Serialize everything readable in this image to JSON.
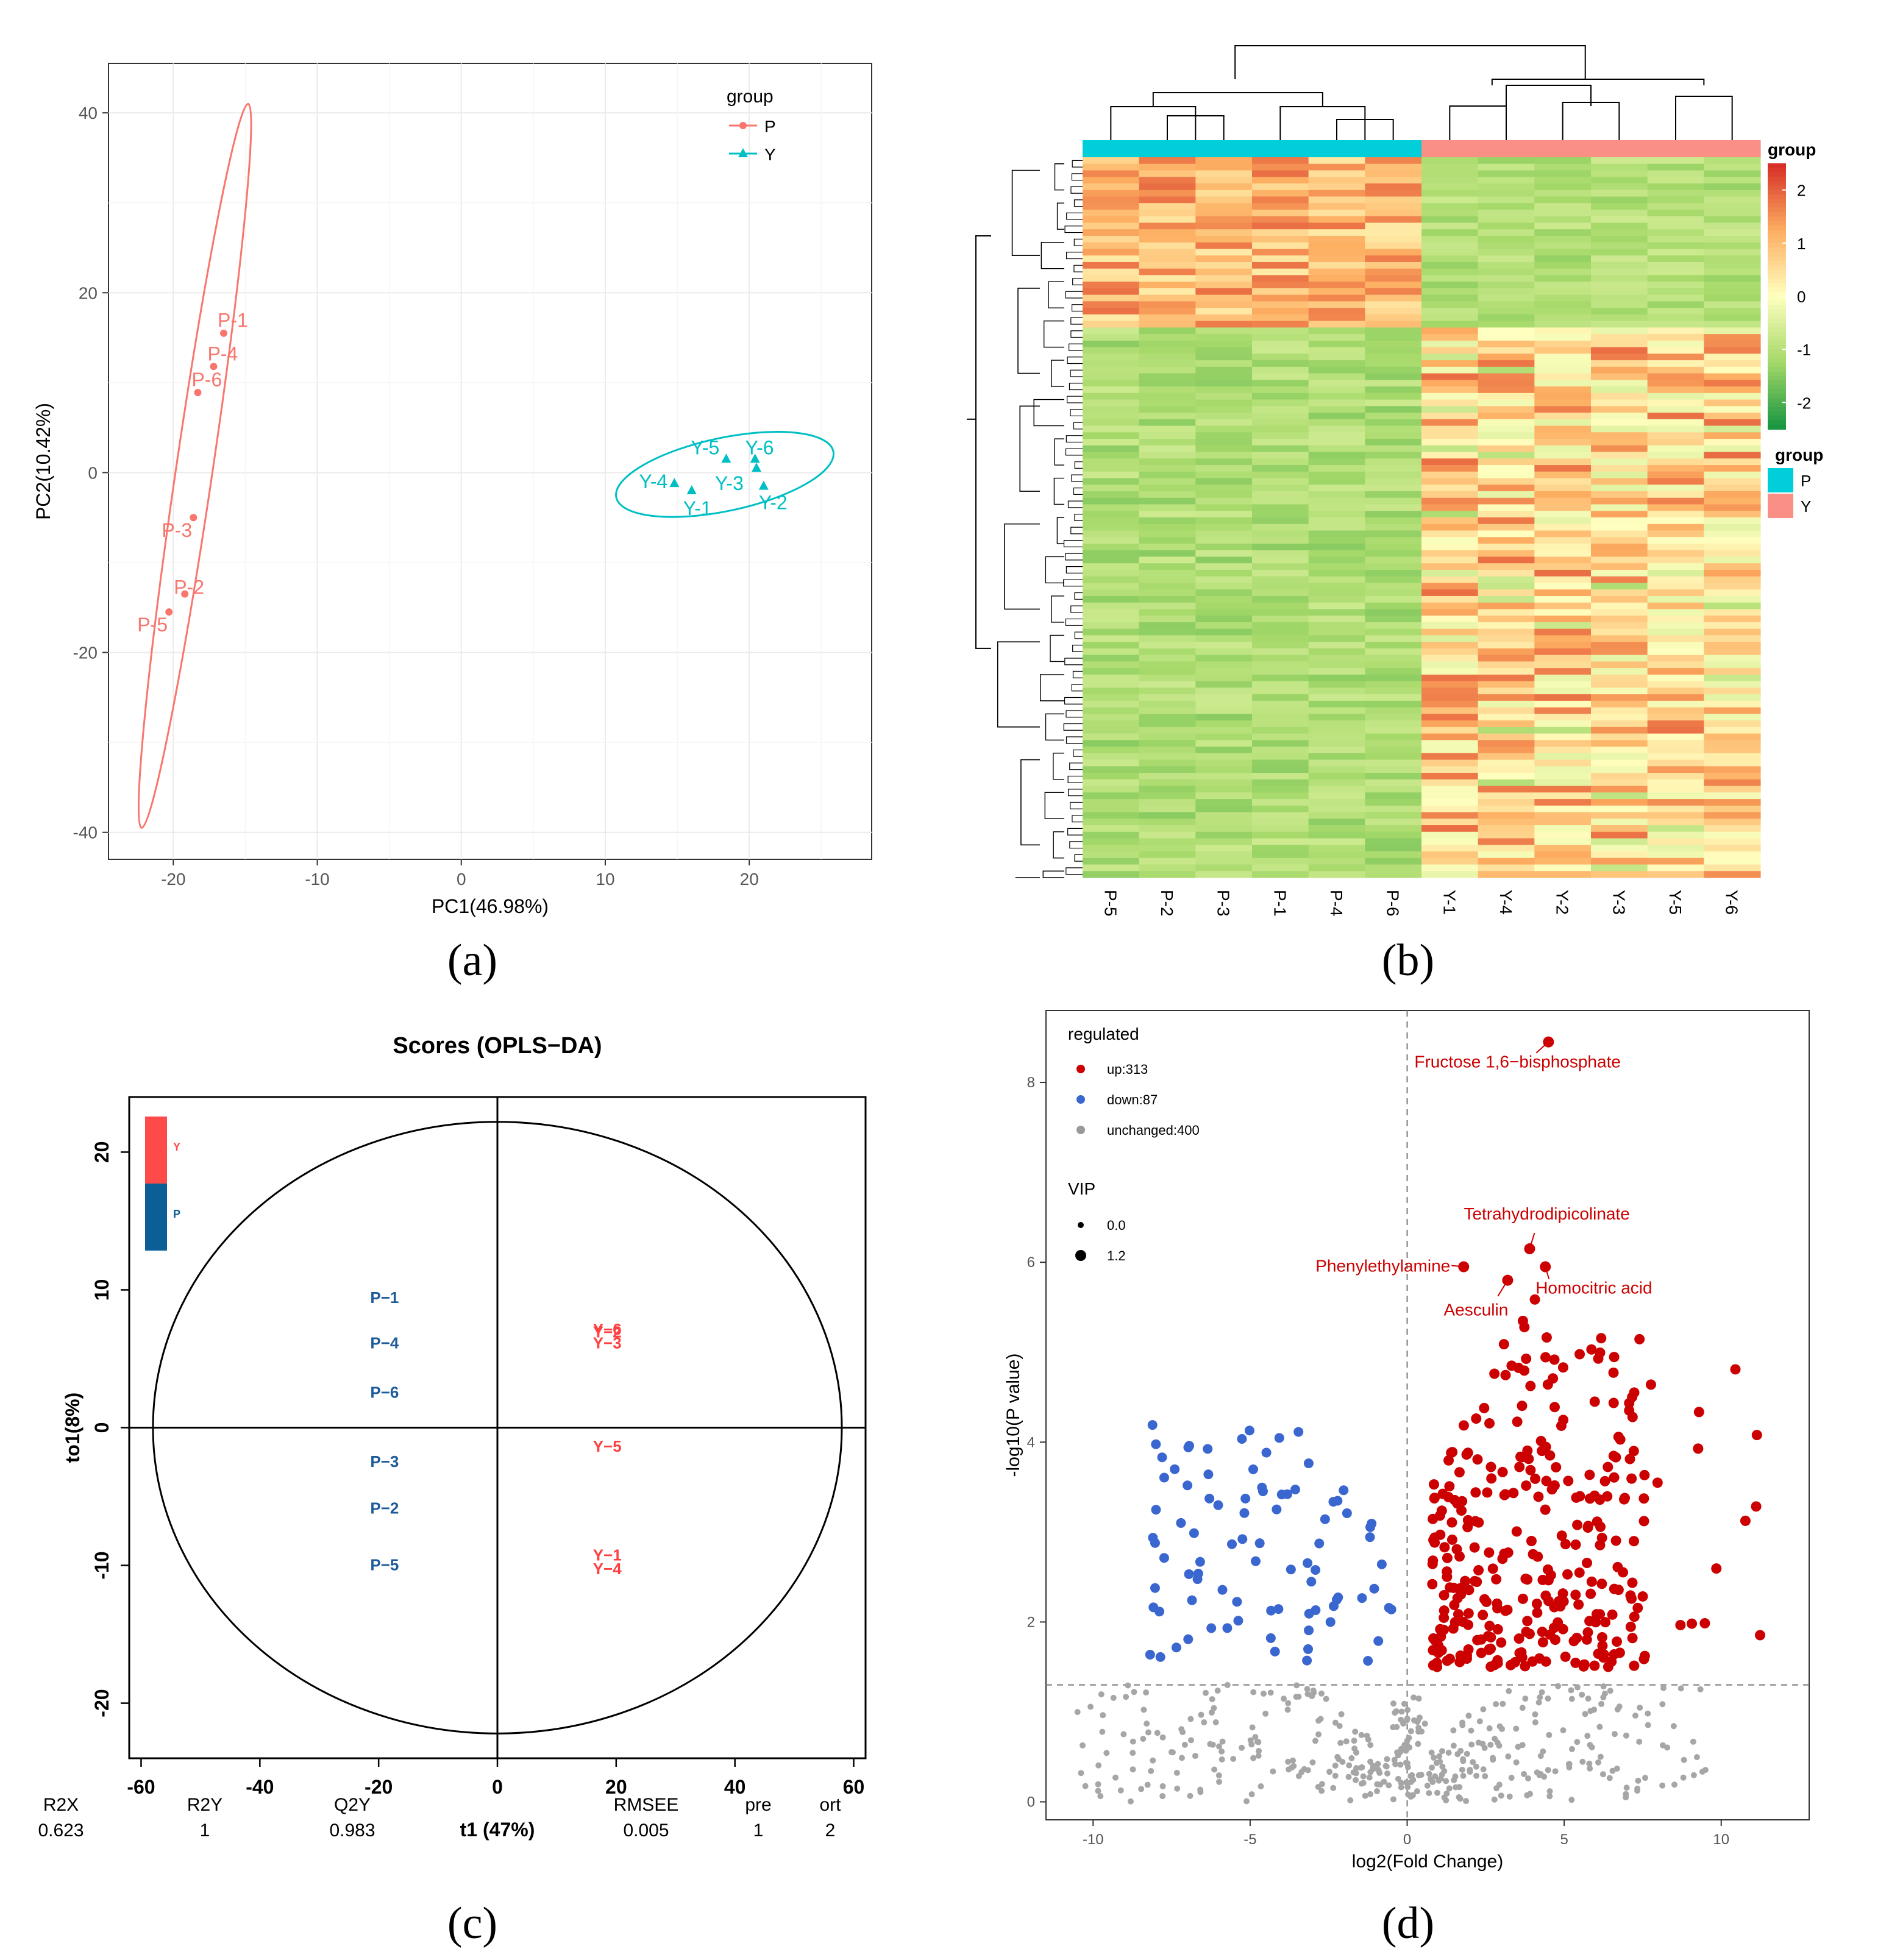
{
  "panel_labels": [
    "(a)",
    "(b)",
    "(c)",
    "(d)"
  ],
  "chart_data": [
    {
      "panel": "a",
      "type": "scatter",
      "title": "",
      "xlabel": "PC1(46.98%)",
      "ylabel": "PC2(10.42%)",
      "xlim": [
        -24.5,
        28.5
      ],
      "ylim": [
        -43,
        45.5
      ],
      "xticks": [
        -20,
        -10,
        0,
        10,
        20
      ],
      "yticks": [
        -40,
        -20,
        0,
        20,
        40
      ],
      "grid": true,
      "legend": {
        "title": "group",
        "placement": "top-right",
        "entries": [
          "P",
          "Y"
        ]
      },
      "series": [
        {
          "name": "P",
          "color": "#f8766d",
          "marker": "circle",
          "points": [
            {
              "label": "P-1",
              "x": -16.5,
              "y": 15.5
            },
            {
              "label": "P-4",
              "x": -17.2,
              "y": 11.8
            },
            {
              "label": "P-6",
              "x": -18.3,
              "y": 8.9
            },
            {
              "label": "P-3",
              "x": -18.6,
              "y": -5.0
            },
            {
              "label": "P-2",
              "x": -19.2,
              "y": -13.5
            },
            {
              "label": "P-5",
              "x": -20.3,
              "y": -15.5
            }
          ],
          "ellipse": [
            [
              -14.8,
              41
            ],
            [
              -22.2,
              -39.5
            ]
          ]
        },
        {
          "name": "Y",
          "color": "#00bfc4",
          "marker": "triangle",
          "points": [
            {
              "label": "Y-5",
              "x": 18.4,
              "y": 1.5
            },
            {
              "label": "Y-6",
              "x": 20.4,
              "y": 1.5
            },
            {
              "label": "Y-4",
              "x": 14.8,
              "y": -1.2
            },
            {
              "label": "Y-3",
              "x": 20.5,
              "y": 0.5
            },
            {
              "label": "Y-1",
              "x": 16.0,
              "y": -2.0
            },
            {
              "label": "Y-2",
              "x": 21.0,
              "y": -1.5
            }
          ],
          "ellipse_center": [
            18.3,
            -0.2
          ]
        }
      ]
    },
    {
      "panel": "b",
      "type": "heatmap",
      "columns": [
        "P-5",
        "P-2",
        "P-3",
        "P-1",
        "P-4",
        "P-6",
        "Y-1",
        "Y-4",
        "Y-2",
        "Y-3",
        "Y-5",
        "Y-6"
      ],
      "column_groups": [
        "P",
        "P",
        "P",
        "P",
        "P",
        "P",
        "Y",
        "Y",
        "Y",
        "Y",
        "Y",
        "Y"
      ],
      "group_colors": {
        "P": "#00ced8",
        "Y": "#fa8f86"
      },
      "annotation_legend": {
        "title": "group",
        "entries": [
          "P",
          "Y"
        ]
      },
      "color_scale": {
        "title": "group",
        "ticks": [
          2,
          1,
          0,
          -1,
          -2
        ],
        "min": -2.5,
        "max": 2.5,
        "colors": [
          "#1a9641",
          "#a6d96a",
          "#ffffbf",
          "#fdae61",
          "#d73027"
        ]
      },
      "rows": 400
    },
    {
      "panel": "c",
      "type": "scatter",
      "title": "Scores (OPLS−DA)",
      "xlabel": "t1 (47%)",
      "ylabel": "to1(8%)",
      "xlim": [
        -62,
        62
      ],
      "ylim": [
        -24,
        24
      ],
      "xticks": [
        -60,
        -40,
        -20,
        0,
        20,
        40,
        60
      ],
      "yticks": [
        20,
        10,
        0,
        -10,
        -20
      ],
      "legend": {
        "placement": "top-left",
        "entries": [
          {
            "name": "Y",
            "color": "#ff4a4a"
          },
          {
            "name": "P",
            "color": "#0b5e96"
          }
        ]
      },
      "ellipse": {
        "rx": 58,
        "ry": 22.2
      },
      "series": [
        {
          "name": "P",
          "color": "#1f5b99",
          "points": [
            {
              "label": "P−1",
              "x": -19,
              "y": 9.5
            },
            {
              "label": "P−4",
              "x": -19,
              "y": 6.2
            },
            {
              "label": "P−6",
              "x": -19,
              "y": 2.6
            },
            {
              "label": "P−3",
              "x": -19,
              "y": -2.4
            },
            {
              "label": "P−2",
              "x": -19,
              "y": -5.8
            },
            {
              "label": "P−5",
              "x": -19,
              "y": -9.9
            }
          ]
        },
        {
          "name": "Y",
          "color": "#ff4040",
          "points": [
            {
              "label": "Y−6",
              "x": 18.5,
              "y": 7.2
            },
            {
              "label": "Y−2",
              "x": 18.5,
              "y": 7.0
            },
            {
              "label": "Y−3",
              "x": 18.5,
              "y": 6.2
            },
            {
              "label": "Y−5",
              "x": 18.5,
              "y": -1.3
            },
            {
              "label": "Y−1",
              "x": 18.5,
              "y": -9.2
            },
            {
              "label": "Y−4",
              "x": 18.5,
              "y": -10.2
            }
          ]
        }
      ],
      "stats": [
        {
          "name": "R2X",
          "value": "0.623"
        },
        {
          "name": "R2Y",
          "value": "1"
        },
        {
          "name": "Q2Y",
          "value": "0.983"
        },
        {
          "name": "RMSEE",
          "value": "0.005"
        },
        {
          "name": "pre",
          "value": "1"
        },
        {
          "name": "ort",
          "value": "2"
        }
      ]
    },
    {
      "panel": "d",
      "type": "scatter",
      "title": "",
      "xlabel": "log2(Fold Change)",
      "ylabel": "-log10(P value)",
      "xlim": [
        -11.5,
        12.8
      ],
      "ylim": [
        -0.2,
        8.8
      ],
      "xticks": [
        -10,
        -5,
        0,
        5,
        10
      ],
      "yticks": [
        0,
        2,
        4,
        6,
        8
      ],
      "thresholds": {
        "y": 1.3,
        "x": 0
      },
      "legend": {
        "title": "regulated",
        "entries": [
          {
            "label": "up:313",
            "color": "#cc0000"
          },
          {
            "label": "down:87",
            "color": "#3a66d0"
          },
          {
            "label": "unchanged:400",
            "color": "#999999"
          }
        ],
        "vip_title": "VIP",
        "vip_entries": [
          "0.0",
          "1.2"
        ]
      },
      "counts": {
        "up": 313,
        "down": 87,
        "unchanged": 400
      },
      "annotations": [
        {
          "label": "Fructose 1,6−bisphosphate",
          "x": 4.5,
          "y": 8.45
        },
        {
          "label": "Tetrahydrodipicolinate",
          "x": 3.9,
          "y": 6.15
        },
        {
          "label": "Phenylethylamine",
          "x": 1.8,
          "y": 5.95
        },
        {
          "label": "Homocitric acid",
          "x": 4.4,
          "y": 5.95
        },
        {
          "label": "Aesculin",
          "x": 3.2,
          "y": 5.8
        }
      ]
    }
  ]
}
